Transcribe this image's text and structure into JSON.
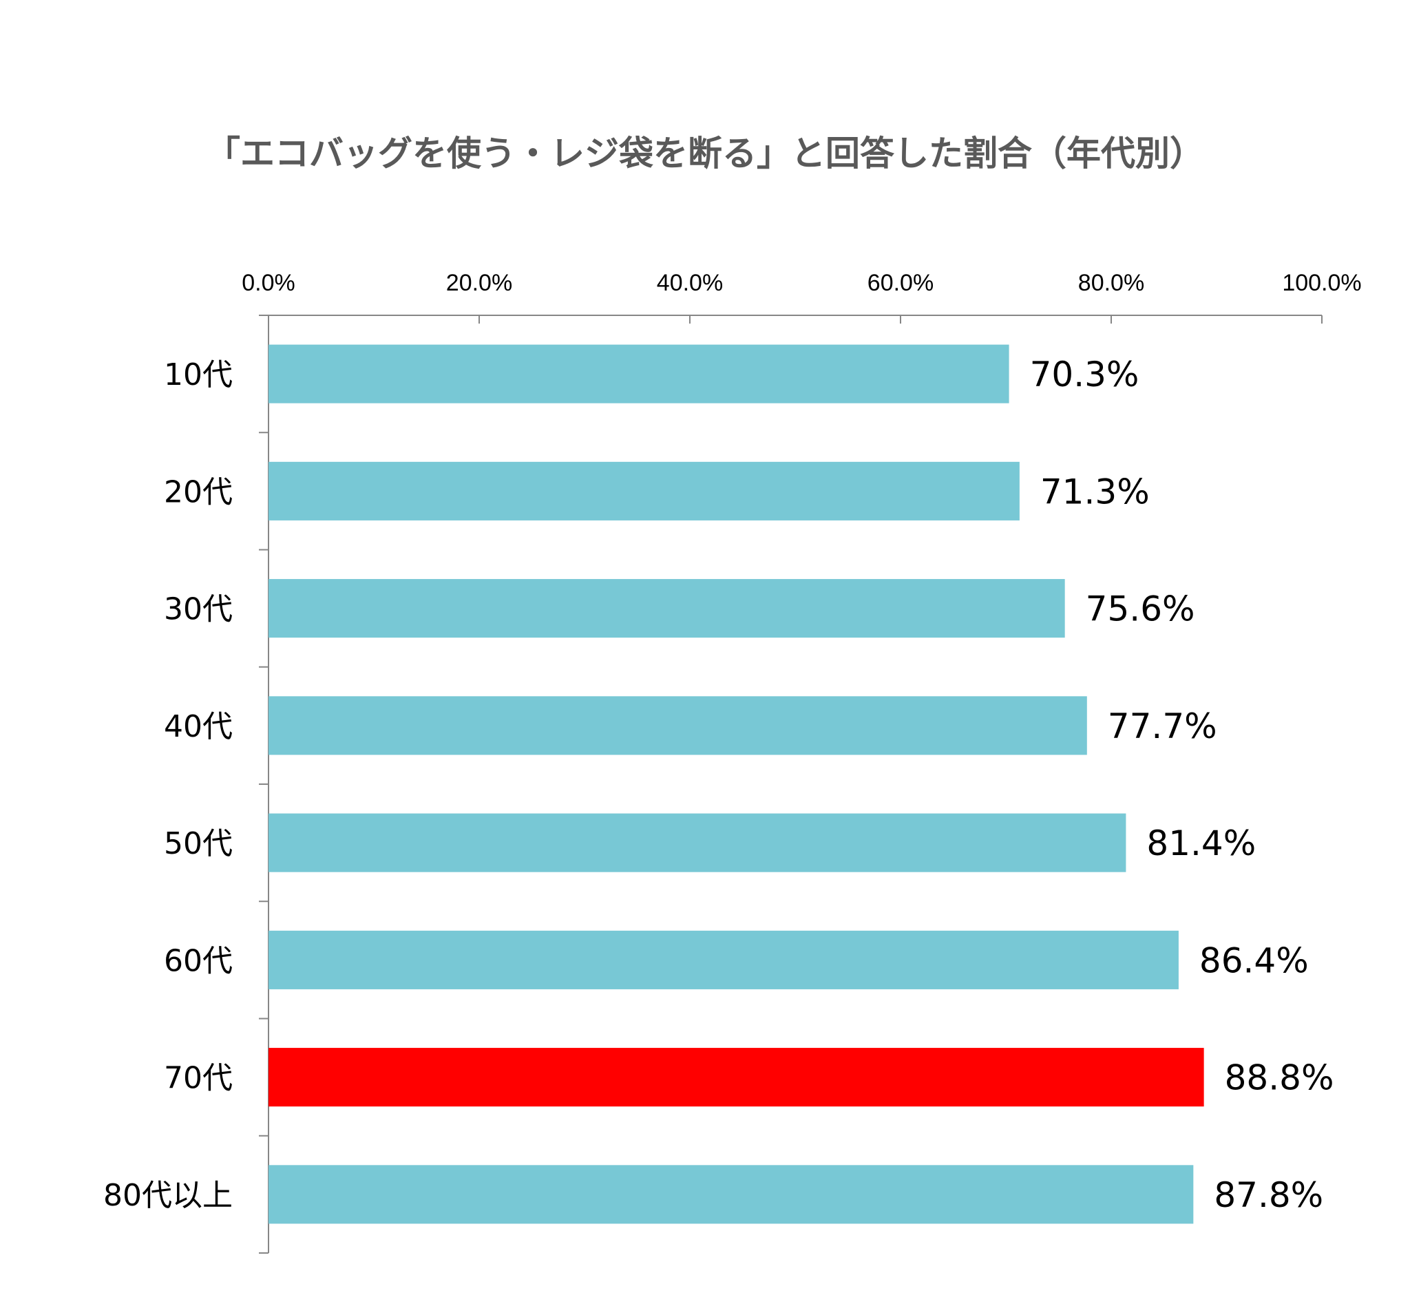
{
  "chart_data": {
    "type": "bar",
    "orientation": "horizontal",
    "title": "「エコバッグを使う・レジ袋を断る」と回答した割合（年代別）",
    "categories": [
      "10代",
      "20代",
      "30代",
      "40代",
      "50代",
      "60代",
      "70代",
      "80代以上"
    ],
    "values": [
      70.3,
      71.3,
      75.6,
      77.7,
      81.4,
      86.4,
      88.8,
      87.8
    ],
    "value_labels": [
      "70.3%",
      "71.3%",
      "75.6%",
      "77.7%",
      "81.4%",
      "86.4%",
      "88.8%",
      "87.8%"
    ],
    "xlim": [
      0,
      100
    ],
    "x_ticks": [
      0,
      20,
      40,
      60,
      80,
      100
    ],
    "x_tick_labels": [
      "0.0%",
      "20.0%",
      "40.0%",
      "60.0%",
      "80.0%",
      "100.0%"
    ],
    "x_axis_position": "top",
    "grid": false,
    "legend": "none",
    "colors": {
      "bar": "#78C8D5",
      "highlight": "#FF0000",
      "highlight_category": "70代",
      "axis": "#868686",
      "title": "#595959"
    }
  }
}
